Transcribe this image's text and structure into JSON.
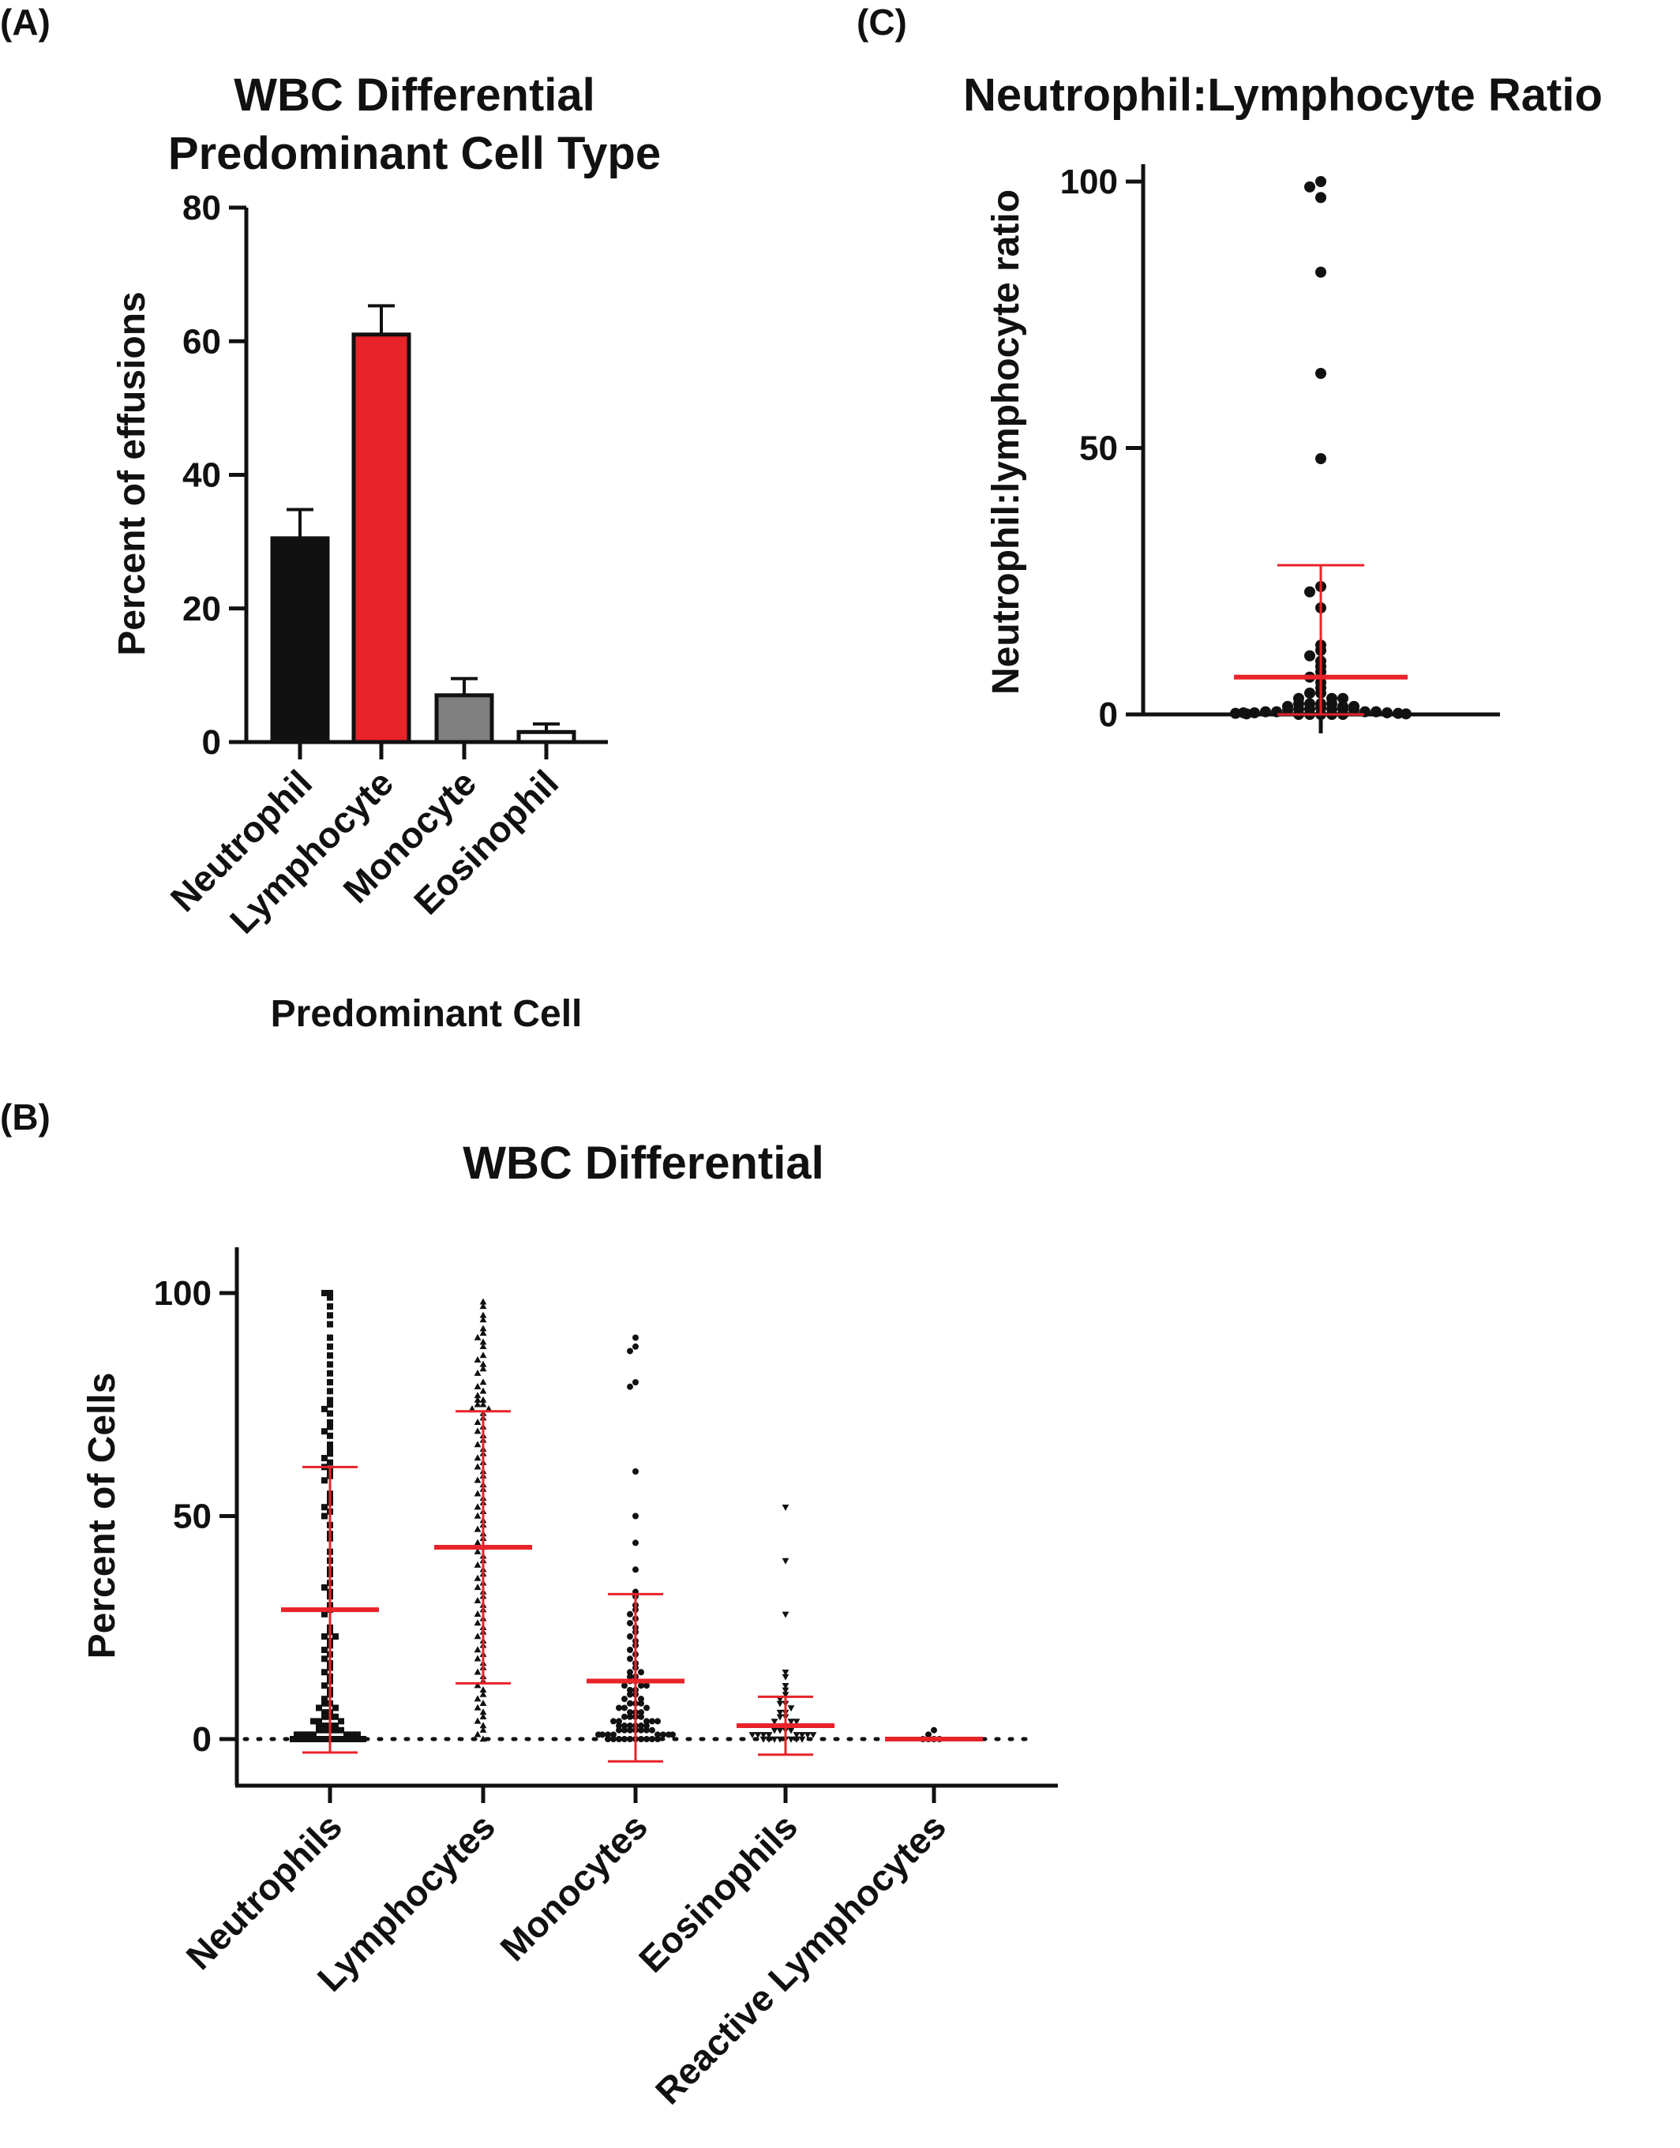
{
  "figure": {
    "background": "#ffffff",
    "ink": "#111111",
    "accent": "#e8232a"
  },
  "chart_data": [
    {
      "panel": "(A)",
      "type": "bar",
      "title": [
        "WBC Differential",
        "Predominant Cell Type"
      ],
      "xlabel": "Predominant Cell",
      "ylabel": "Percent of effusions",
      "ylim": [
        0,
        80
      ],
      "yticks": [
        0,
        20,
        40,
        60,
        80
      ],
      "categories": [
        "Neutrophil",
        "Lymphocyte",
        "Monocyte",
        "Eosinophil"
      ],
      "values": [
        30.5,
        61,
        7,
        1.5
      ],
      "errors": [
        4.3,
        4.3,
        2.5,
        1.2
      ],
      "colors": [
        "#111111",
        "#e8232a",
        "#808080",
        "#ffffff"
      ],
      "grid": false
    },
    {
      "panel": "(B)",
      "type": "scatter",
      "title": "WBC Differential",
      "ylabel": "Percent of Cells",
      "ylim": [
        -8,
        110
      ],
      "yticks": [
        0,
        50,
        100
      ],
      "categories": [
        "Neutrophils",
        "Lymphocytes",
        "Monocytes",
        "Eosinophils",
        "Reactive Lymphocytes"
      ],
      "markers": [
        "square",
        "triangle-up",
        "circle",
        "triangle-down",
        "circle"
      ],
      "mean": [
        29,
        43,
        13,
        3,
        0
      ],
      "sd_low": [
        -3,
        12.5,
        -5,
        -3.5,
        0
      ],
      "sd_high": [
        61,
        73.5,
        32.5,
        9.5,
        0
      ],
      "reference_line": 0,
      "points": [
        [
          100,
          100,
          99,
          97,
          95,
          93,
          90,
          88,
          86,
          84,
          82,
          80,
          78,
          76,
          75,
          74,
          73,
          71,
          70,
          69,
          68,
          66,
          65,
          64,
          63,
          62,
          61,
          60,
          59,
          58,
          55,
          54,
          53,
          52,
          51,
          50,
          48,
          46,
          45,
          42,
          40,
          38,
          37,
          35,
          34,
          33,
          32,
          30,
          29,
          28,
          25,
          24,
          23,
          23,
          22,
          21,
          20,
          19,
          18,
          17,
          16,
          15,
          14,
          13,
          12,
          11,
          10,
          9,
          8,
          8,
          7,
          7,
          6,
          6,
          5,
          5,
          5,
          4,
          4,
          4,
          3,
          3,
          3,
          3,
          2,
          2,
          2,
          2,
          2,
          1,
          1,
          1,
          1,
          1,
          1,
          1,
          0,
          0,
          0,
          0,
          0,
          0,
          0,
          0,
          0,
          0,
          0,
          0,
          0,
          0
        ],
        [
          98,
          97,
          95,
          94,
          92,
          91,
          90,
          89,
          88,
          86,
          85,
          84,
          83,
          82,
          80,
          79,
          78,
          77,
          76,
          76,
          75,
          75,
          74,
          74,
          73,
          72,
          71,
          70,
          69,
          68,
          67,
          66,
          65,
          64,
          63,
          62,
          61,
          60,
          59,
          58,
          57,
          56,
          55,
          54,
          53,
          52,
          51,
          50,
          49,
          48,
          47,
          46,
          45,
          44,
          43,
          42,
          41,
          40,
          39,
          38,
          37,
          36,
          35,
          34,
          33,
          32,
          31,
          30,
          29,
          28,
          27,
          26,
          25,
          24,
          23,
          22,
          21,
          20,
          19,
          18,
          17,
          16,
          15,
          14,
          13,
          12,
          11,
          10,
          9,
          8,
          7,
          6,
          5,
          4,
          3,
          2,
          1,
          0
        ],
        [
          90,
          88,
          87,
          80,
          79,
          60,
          50,
          44,
          38,
          33,
          32,
          30,
          29,
          28,
          27,
          26,
          25,
          24,
          23,
          22,
          21,
          20,
          19,
          18,
          17,
          16,
          15,
          15,
          14,
          14,
          13,
          13,
          12,
          12,
          12,
          11,
          11,
          10,
          10,
          9,
          9,
          8,
          8,
          8,
          7,
          7,
          7,
          6,
          6,
          6,
          5,
          5,
          5,
          5,
          4,
          4,
          4,
          4,
          4,
          3,
          3,
          3,
          3,
          3,
          3,
          2,
          2,
          2,
          2,
          2,
          2,
          2,
          1,
          1,
          1,
          1,
          1,
          1,
          1,
          1,
          0,
          0,
          0,
          0,
          0,
          0,
          0,
          0,
          0,
          0
        ],
        [
          52,
          40,
          28,
          15,
          14,
          12,
          11,
          10,
          9,
          8,
          8,
          7,
          6,
          6,
          5,
          5,
          4,
          4,
          4,
          3,
          3,
          3,
          2,
          2,
          2,
          2,
          1,
          1,
          1,
          1,
          1,
          1,
          1,
          1,
          0,
          0,
          0,
          0,
          0,
          0,
          0,
          0
        ],
        [
          2,
          1,
          0,
          0,
          0,
          0
        ]
      ],
      "grid": false
    },
    {
      "panel": "(C)",
      "type": "scatter",
      "title": "Neutrophil:Lymphocyte Ratio",
      "ylabel": "Neutrophil:lymphocyte ratio",
      "ylim": [
        0,
        100
      ],
      "yticks": [
        0,
        50,
        100
      ],
      "mean": 7,
      "sd_low": 0,
      "sd_high": 28,
      "points": [
        100,
        99,
        97,
        83,
        64,
        48,
        24,
        23,
        20,
        13,
        12,
        11,
        10,
        9,
        8,
        7,
        6,
        5,
        4,
        4,
        3,
        3,
        3,
        2,
        2,
        2,
        2,
        1.5,
        1.5,
        1.5,
        1.2,
        1,
        1,
        1,
        1,
        0.8,
        0.8,
        0.5,
        0.5,
        0.5,
        0.5,
        0.3,
        0.3,
        0.3,
        0.2,
        0.2,
        0.1,
        0.1,
        0,
        0,
        0,
        0,
        0
      ],
      "grid": false
    }
  ]
}
